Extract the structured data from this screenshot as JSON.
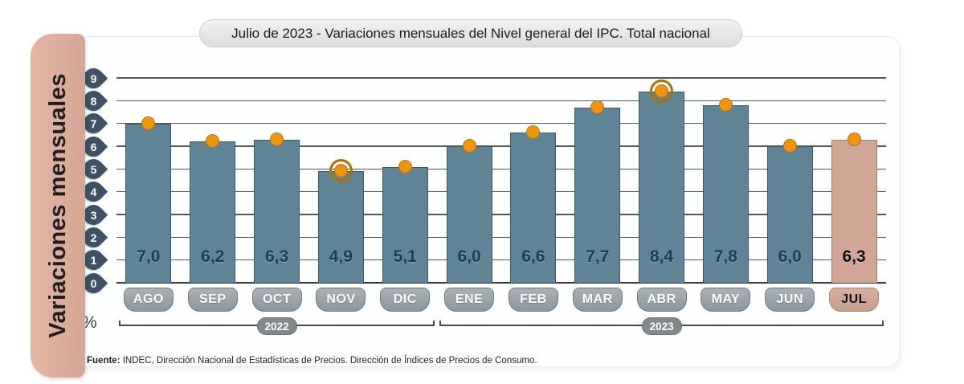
{
  "title": "Julio de 2023 - Variaciones mensuales del Nivel general del IPC. Total nacional",
  "y_axis_label": "Variaciones mensuales",
  "percent_label": "%",
  "source": {
    "label": "Fuente:",
    "text": " INDEC, Dirección Nacional de Estadísticas de Precios. Dirección de Índices de Precios de Consumo."
  },
  "chart_data": {
    "type": "bar",
    "title": "Julio de 2023 - Variaciones mensuales del Nivel general del IPC. Total nacional",
    "ylabel": "Variaciones mensuales",
    "unit": "%",
    "categories": [
      "AGO",
      "SEP",
      "OCT",
      "NOV",
      "DIC",
      "ENE",
      "FEB",
      "MAR",
      "ABR",
      "MAY",
      "JUN",
      "JUL"
    ],
    "values": [
      7.0,
      6.2,
      6.3,
      4.9,
      5.1,
      6.0,
      6.6,
      7.7,
      8.4,
      7.8,
      6.0,
      6.3
    ],
    "value_labels": [
      "7,0",
      "6,2",
      "6,3",
      "4,9",
      "5,1",
      "6,0",
      "6,6",
      "7,7",
      "8,4",
      "7,8",
      "6,0",
      "6,3"
    ],
    "highlighted_index": 11,
    "ringed_indices": [
      3,
      8
    ],
    "yticks": [
      0,
      1,
      2,
      3,
      4,
      5,
      6,
      7,
      8,
      9
    ],
    "ylim": [
      0,
      9
    ],
    "grid": true,
    "groups": [
      {
        "label": "2022",
        "from": 0,
        "to": 4
      },
      {
        "label": "2023",
        "from": 5,
        "to": 11
      }
    ],
    "colors": {
      "bar": "#5f8495",
      "bar_highlight": "#d0a797",
      "dot": "#ef9410",
      "pin": "#3e5166",
      "badge": "#99a2a9",
      "badge_highlight": "#cfa695",
      "strip": "#d9ab9b"
    }
  }
}
